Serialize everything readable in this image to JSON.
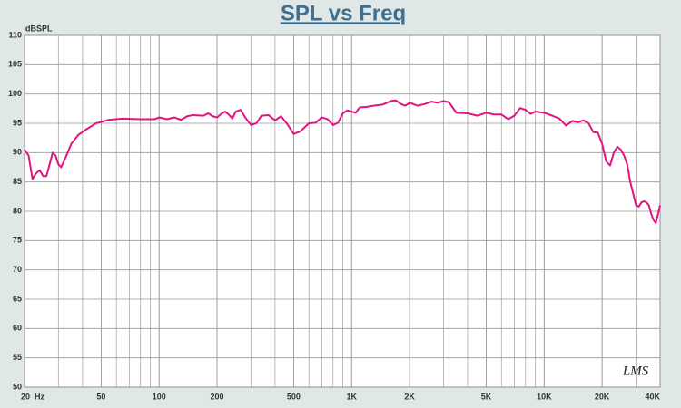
{
  "chart_data": {
    "type": "line",
    "title": "SPL vs Freq",
    "y_label": "dBSPL",
    "watermark": "LMS",
    "log_x": true,
    "grid": true,
    "xlim": [
      20,
      40000
    ],
    "ylim": [
      50,
      110
    ],
    "xticks": [
      {
        "value": 20,
        "label": "20  Hz"
      },
      50,
      100,
      200,
      500,
      {
        "value": 1000,
        "label": "1K"
      },
      {
        "value": 2000,
        "label": "2K"
      },
      {
        "value": 5000,
        "label": "5K"
      },
      {
        "value": 10000,
        "label": "10K"
      },
      {
        "value": 20000,
        "label": "20K"
      },
      {
        "value": 40000,
        "label": "40K"
      }
    ],
    "yticks": [
      50,
      55,
      60,
      65,
      70,
      75,
      80,
      85,
      90,
      95,
      100,
      105,
      110
    ],
    "x": [
      20,
      21,
      22,
      23,
      24,
      25,
      26,
      27,
      28,
      29,
      30,
      31,
      33,
      35,
      38,
      42,
      47,
      55,
      65,
      80,
      95,
      100,
      110,
      120,
      130,
      140,
      150,
      170,
      180,
      190,
      200,
      210,
      220,
      230,
      240,
      250,
      265,
      280,
      300,
      320,
      340,
      370,
      400,
      430,
      460,
      500,
      540,
      600,
      650,
      700,
      750,
      800,
      850,
      900,
      950,
      1000,
      1050,
      1100,
      1200,
      1300,
      1450,
      1600,
      1700,
      1800,
      1900,
      2000,
      2200,
      2400,
      2600,
      2800,
      3000,
      3200,
      3500,
      4000,
      4500,
      5000,
      5500,
      6000,
      6500,
      7000,
      7500,
      8000,
      8500,
      9000,
      10000,
      11000,
      12000,
      13000,
      14000,
      15000,
      16000,
      17000,
      18000,
      19000,
      20000,
      21000,
      22000,
      23000,
      24000,
      25000,
      26000,
      27000,
      28000,
      29000,
      30000,
      31000,
      32000,
      33000,
      34000,
      35000,
      36000,
      37000,
      38000,
      39000,
      40000
    ],
    "series": [
      {
        "color": "#e0157f",
        "values": [
          90.5,
          89.5,
          85.5,
          86.5,
          87,
          86,
          86,
          88,
          90,
          89.5,
          88,
          87.5,
          89.5,
          91.5,
          93,
          94,
          95,
          95.6,
          95.8,
          95.7,
          95.7,
          96,
          95.7,
          96,
          95.6,
          96.2,
          96.4,
          96.3,
          96.7,
          96.2,
          96,
          96.6,
          97,
          96.5,
          95.8,
          97,
          97.3,
          96,
          94.7,
          95,
          96.3,
          96.4,
          95.5,
          96.2,
          95,
          93.2,
          93.6,
          95,
          95.1,
          96,
          95.7,
          94.7,
          95.1,
          96.7,
          97.2,
          97,
          96.8,
          97.7,
          97.8,
          98,
          98.2,
          98.8,
          98.9,
          98.3,
          98,
          98.5,
          98,
          98.3,
          98.7,
          98.5,
          98.8,
          98.6,
          96.8,
          96.7,
          96.3,
          96.8,
          96.5,
          96.5,
          95.7,
          96.3,
          97.6,
          97.3,
          96.6,
          97,
          96.8,
          96.3,
          95.8,
          94.6,
          95.4,
          95.2,
          95.5,
          95,
          93.5,
          93.4,
          91.5,
          88.5,
          87.8,
          90,
          91,
          90.5,
          89.5,
          88,
          85,
          83,
          81,
          80.8,
          81.5,
          81.7,
          81.5,
          81,
          79.5,
          78.5,
          78,
          79.5,
          81
        ]
      }
    ]
  }
}
